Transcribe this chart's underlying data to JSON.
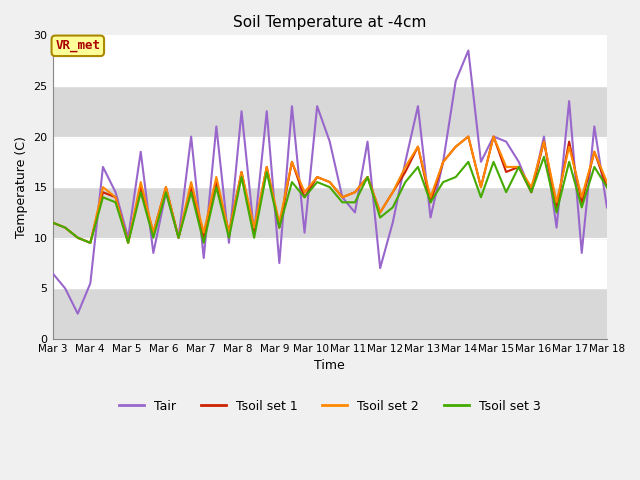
{
  "title": "Soil Temperature at -4cm",
  "xlabel": "Time",
  "ylabel": "Temperature (C)",
  "xlim": [
    0,
    15
  ],
  "ylim": [
    0,
    30
  ],
  "yticks": [
    0,
    5,
    10,
    15,
    20,
    25,
    30
  ],
  "xtick_labels": [
    "Mar 3",
    "Mar 4",
    "Mar 5",
    "Mar 6",
    "Mar 7",
    "Mar 8",
    "Mar 9",
    "Mar 10",
    "Mar 11",
    "Mar 12",
    "Mar 13",
    "Mar 14",
    "Mar 15",
    "Mar 16",
    "Mar 17",
    "Mar 18"
  ],
  "legend_entries": [
    "Tair",
    "Tsoil set 1",
    "Tsoil set 2",
    "Tsoil set 3"
  ],
  "legend_colors": [
    "#9966cc",
    "#cc2200",
    "#ff8800",
    "#44aa00"
  ],
  "annotation_text": "VR_met",
  "annotation_bg": "#ffff99",
  "annotation_border": "#aa8800",
  "annotation_text_color": "#aa0000",
  "plot_bg": "#dddddd",
  "band_color_light": "#e8e8e8",
  "band_color_dark": "#d0d0d0",
  "tair_color": "#9966cc",
  "tsoil1_color": "#cc2200",
  "tsoil2_color": "#ff8800",
  "tsoil3_color": "#44aa00",
  "line_width": 1.5,
  "figsize": [
    6.4,
    4.8
  ],
  "dpi": 100,
  "tair": [
    6.5,
    5.0,
    2.5,
    5.5,
    17.0,
    14.5,
    10.0,
    18.5,
    8.5,
    14.5,
    10.0,
    20.0,
    8.0,
    21.0,
    9.5,
    22.5,
    10.5,
    22.5,
    7.5,
    23.0,
    10.5,
    23.0,
    19.5,
    14.0,
    12.5,
    19.5,
    7.0,
    11.5,
    17.5,
    23.0,
    12.0,
    17.5,
    25.5,
    28.5,
    17.5,
    20.0,
    19.5,
    17.5,
    14.5,
    20.0,
    11.0,
    23.5,
    8.5,
    21.0,
    13.0
  ],
  "tsoil1": [
    11.5,
    11.0,
    10.0,
    9.5,
    14.5,
    14.0,
    9.5,
    15.0,
    10.5,
    15.0,
    10.0,
    15.0,
    10.0,
    15.5,
    10.5,
    16.5,
    10.5,
    17.0,
    11.0,
    17.5,
    14.0,
    16.0,
    15.5,
    14.0,
    14.5,
    16.0,
    12.5,
    14.5,
    16.5,
    19.0,
    13.5,
    17.5,
    19.0,
    20.0,
    15.0,
    20.0,
    16.5,
    17.0,
    14.5,
    19.5,
    13.0,
    19.5,
    13.5,
    18.5,
    15.0
  ],
  "tsoil2": [
    11.5,
    11.0,
    10.0,
    9.5,
    15.0,
    14.0,
    9.5,
    15.5,
    10.5,
    15.0,
    10.0,
    15.5,
    10.5,
    16.0,
    10.5,
    16.5,
    11.0,
    17.0,
    11.5,
    17.5,
    14.5,
    16.0,
    15.5,
    14.0,
    14.5,
    16.0,
    12.5,
    14.5,
    17.0,
    19.0,
    14.0,
    17.5,
    19.0,
    20.0,
    15.0,
    20.0,
    17.0,
    17.0,
    15.0,
    19.5,
    13.5,
    19.0,
    14.0,
    18.5,
    15.5
  ],
  "tsoil3": [
    11.5,
    11.0,
    10.0,
    9.5,
    14.0,
    13.5,
    9.5,
    14.5,
    10.0,
    14.5,
    10.0,
    14.5,
    9.5,
    15.0,
    10.0,
    16.0,
    10.0,
    16.5,
    11.0,
    15.5,
    14.0,
    15.5,
    15.0,
    13.5,
    13.5,
    16.0,
    12.0,
    13.0,
    15.5,
    17.0,
    13.5,
    15.5,
    16.0,
    17.5,
    14.0,
    17.5,
    14.5,
    17.0,
    14.5,
    18.0,
    12.5,
    17.5,
    13.0,
    17.0,
    15.0
  ]
}
